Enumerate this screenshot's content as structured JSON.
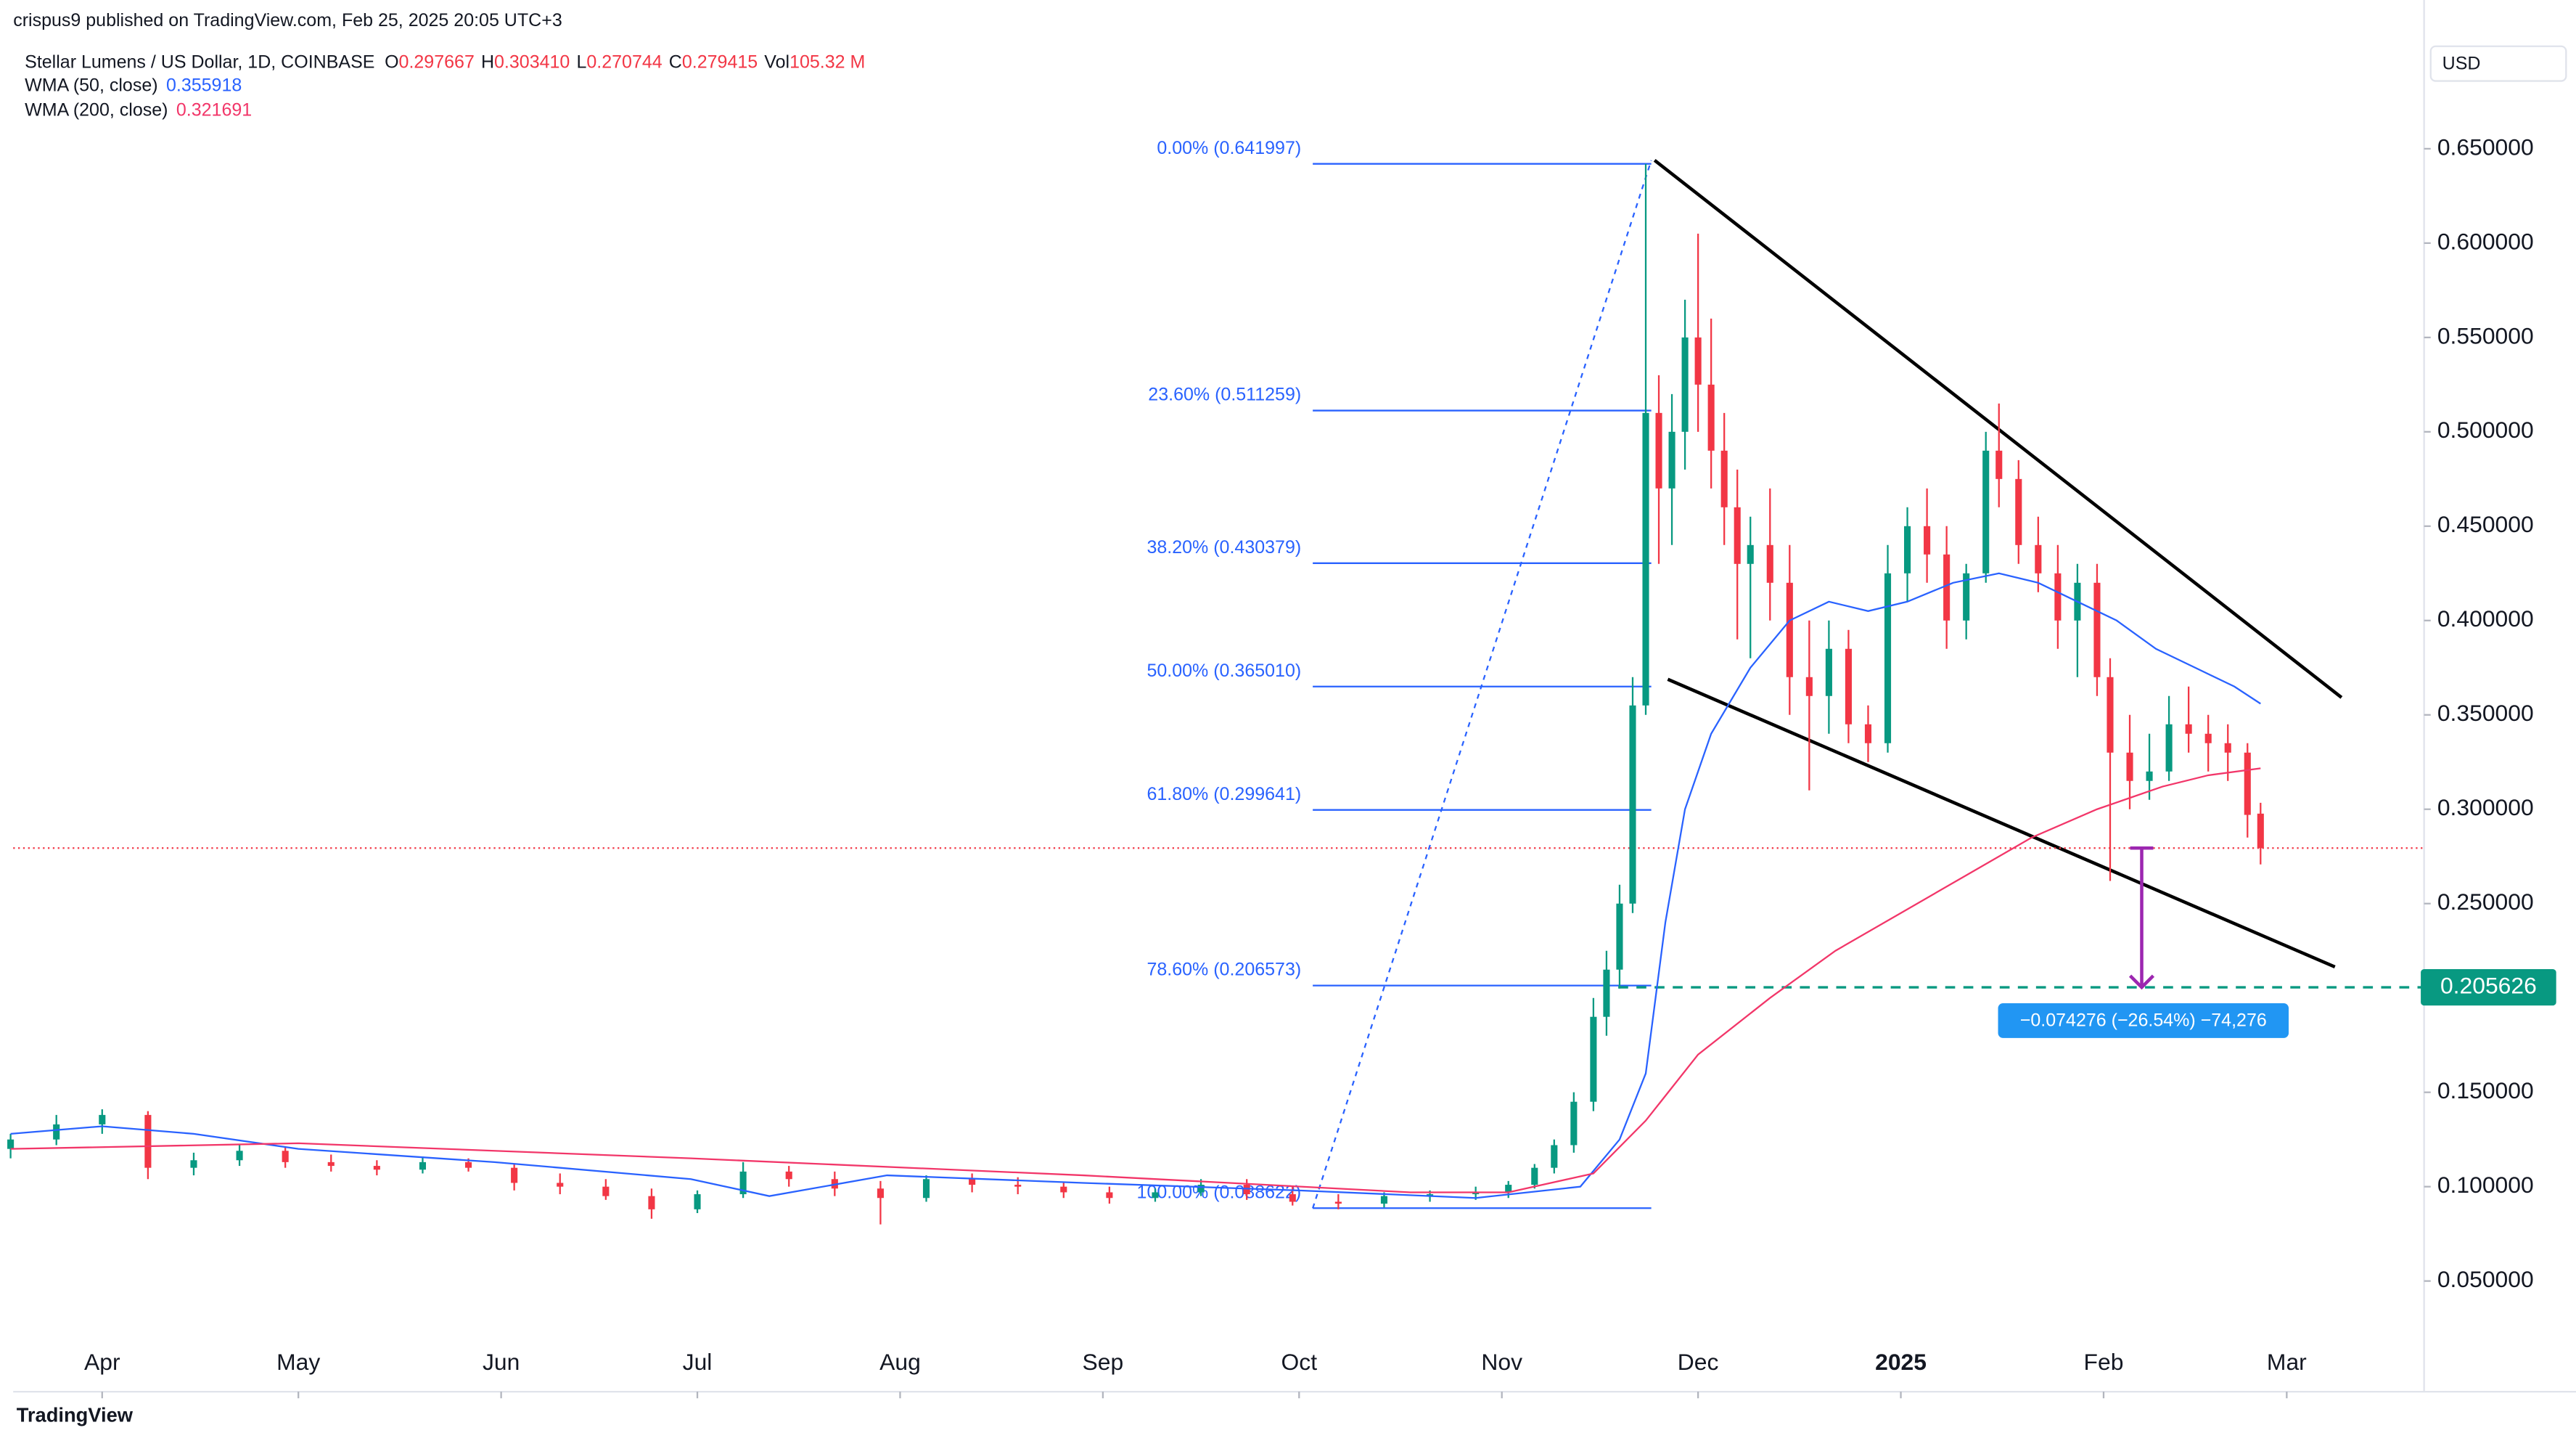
{
  "header": {
    "published": "crispus9 published on TradingView.com, Feb 25, 2025 20:05 UTC+3",
    "symbol": "Stellar Lumens / US Dollar, 1D, COINBASE",
    "ohlc": [
      {
        "key": "O",
        "value": "0.297667"
      },
      {
        "key": "H",
        "value": "0.303410"
      },
      {
        "key": "L",
        "value": "0.270744"
      },
      {
        "key": "C",
        "value": "0.279415"
      },
      {
        "key": "Vol",
        "value": "105.32 M"
      }
    ]
  },
  "currency": "USD",
  "footer": "TradingView",
  "chart_data": {
    "type": "candlestick",
    "up_color": "#089981",
    "down_color": "#f23645",
    "x": [
      -14,
      -7,
      0,
      7,
      14,
      21,
      28,
      35,
      42,
      49,
      56,
      63,
      70,
      77,
      84,
      91,
      98,
      105,
      112,
      119,
      126,
      133,
      140,
      147,
      154,
      161,
      168,
      175,
      182,
      189,
      196,
      203,
      210,
      215,
      219,
      222,
      225,
      228,
      230,
      232,
      234,
      236,
      238,
      240,
      242,
      244,
      246,
      248,
      250,
      252,
      255,
      258,
      261,
      264,
      267,
      270,
      273,
      276,
      279,
      282,
      285,
      288,
      290,
      293,
      296,
      299,
      302,
      305,
      307,
      310,
      313,
      316,
      319,
      322,
      325,
      328,
      330
    ],
    "open": [
      0.12,
      0.125,
      0.133,
      0.138,
      0.11,
      0.114,
      0.119,
      0.113,
      0.111,
      0.109,
      0.113,
      0.11,
      0.102,
      0.1,
      0.095,
      0.088,
      0.096,
      0.108,
      0.104,
      0.099,
      0.094,
      0.104,
      0.101,
      0.1,
      0.097,
      0.094,
      0.097,
      0.101,
      0.096,
      0.092,
      0.091,
      0.095,
      0.096,
      0.097,
      0.101,
      0.11,
      0.122,
      0.145,
      0.19,
      0.215,
      0.25,
      0.355,
      0.51,
      0.47,
      0.5,
      0.55,
      0.525,
      0.49,
      0.46,
      0.43,
      0.44,
      0.42,
      0.37,
      0.36,
      0.385,
      0.345,
      0.335,
      0.425,
      0.45,
      0.435,
      0.4,
      0.425,
      0.49,
      0.475,
      0.44,
      0.425,
      0.4,
      0.42,
      0.37,
      0.33,
      0.315,
      0.32,
      0.345,
      0.34,
      0.335,
      0.33,
      0.297667
    ],
    "high": [
      0.128,
      0.138,
      0.141,
      0.14,
      0.118,
      0.122,
      0.121,
      0.117,
      0.114,
      0.116,
      0.115,
      0.112,
      0.107,
      0.104,
      0.099,
      0.098,
      0.113,
      0.111,
      0.108,
      0.103,
      0.106,
      0.107,
      0.105,
      0.102,
      0.1,
      0.099,
      0.104,
      0.104,
      0.1,
      0.096,
      0.097,
      0.098,
      0.1,
      0.103,
      0.112,
      0.125,
      0.15,
      0.2,
      0.225,
      0.26,
      0.37,
      0.641997,
      0.53,
      0.52,
      0.57,
      0.605,
      0.56,
      0.51,
      0.48,
      0.455,
      0.47,
      0.44,
      0.4,
      0.4,
      0.395,
      0.355,
      0.44,
      0.46,
      0.47,
      0.45,
      0.43,
      0.5,
      0.515,
      0.485,
      0.455,
      0.44,
      0.43,
      0.43,
      0.38,
      0.35,
      0.34,
      0.36,
      0.365,
      0.35,
      0.345,
      0.335,
      0.30341
    ],
    "low": [
      0.115,
      0.122,
      0.128,
      0.104,
      0.106,
      0.111,
      0.11,
      0.108,
      0.106,
      0.107,
      0.108,
      0.098,
      0.096,
      0.093,
      0.083,
      0.086,
      0.094,
      0.1,
      0.095,
      0.08,
      0.092,
      0.097,
      0.096,
      0.094,
      0.091,
      0.092,
      0.095,
      0.093,
      0.09,
      0.088,
      0.089,
      0.092,
      0.093,
      0.094,
      0.099,
      0.107,
      0.118,
      0.14,
      0.18,
      0.205,
      0.245,
      0.35,
      0.43,
      0.44,
      0.48,
      0.5,
      0.47,
      0.44,
      0.39,
      0.38,
      0.4,
      0.35,
      0.31,
      0.34,
      0.335,
      0.325,
      0.33,
      0.41,
      0.42,
      0.385,
      0.39,
      0.42,
      0.46,
      0.43,
      0.415,
      0.385,
      0.37,
      0.36,
      0.262,
      0.3,
      0.305,
      0.315,
      0.33,
      0.32,
      0.315,
      0.285,
      0.270744
    ],
    "close": [
      0.125,
      0.133,
      0.138,
      0.11,
      0.114,
      0.119,
      0.113,
      0.111,
      0.109,
      0.113,
      0.11,
      0.102,
      0.1,
      0.095,
      0.088,
      0.096,
      0.108,
      0.104,
      0.099,
      0.094,
      0.104,
      0.101,
      0.1,
      0.097,
      0.094,
      0.097,
      0.101,
      0.096,
      0.092,
      0.091,
      0.095,
      0.096,
      0.097,
      0.101,
      0.11,
      0.122,
      0.145,
      0.19,
      0.215,
      0.25,
      0.355,
      0.51,
      0.47,
      0.5,
      0.55,
      0.525,
      0.49,
      0.46,
      0.43,
      0.44,
      0.42,
      0.37,
      0.36,
      0.385,
      0.345,
      0.335,
      0.425,
      0.45,
      0.435,
      0.4,
      0.425,
      0.49,
      0.475,
      0.44,
      0.425,
      0.4,
      0.42,
      0.37,
      0.33,
      0.315,
      0.32,
      0.345,
      0.34,
      0.335,
      0.33,
      0.297,
      0.279415
    ],
    "series": [
      {
        "name": "WMA (50, close)",
        "last": "0.355918",
        "color": "#2962ff",
        "x": [
          -14,
          0,
          14,
          30,
          60,
          90,
          102,
          120,
          150,
          183,
          210,
          226,
          232,
          236,
          239,
          242,
          246,
          252,
          258,
          264,
          270,
          276,
          283,
          290,
          296,
          302,
          308,
          314,
          320,
          326,
          330
        ],
        "values": [
          0.128,
          0.132,
          0.128,
          0.12,
          0.113,
          0.104,
          0.095,
          0.106,
          0.102,
          0.098,
          0.094,
          0.1,
          0.125,
          0.16,
          0.24,
          0.3,
          0.34,
          0.375,
          0.4,
          0.41,
          0.405,
          0.41,
          0.42,
          0.425,
          0.42,
          0.41,
          0.4,
          0.385,
          0.375,
          0.365,
          0.355918
        ]
      },
      {
        "name": "WMA (200, close)",
        "last": "0.321691",
        "color": "#f23669",
        "x": [
          -14,
          30,
          90,
          150,
          200,
          215,
          228,
          236,
          244,
          255,
          265,
          275,
          285,
          295,
          305,
          315,
          322,
          330
        ],
        "values": [
          0.12,
          0.123,
          0.115,
          0.106,
          0.097,
          0.097,
          0.107,
          0.135,
          0.17,
          0.2,
          0.225,
          0.245,
          0.265,
          0.285,
          0.3,
          0.312,
          0.318,
          0.321691
        ]
      }
    ],
    "xlim": [
      -13.6,
      355
    ],
    "xticks": [
      {
        "value": 0,
        "label": "Apr"
      },
      {
        "value": 30,
        "label": "May"
      },
      {
        "value": 61,
        "label": "Jun"
      },
      {
        "value": 91,
        "label": "Jul"
      },
      {
        "value": 122,
        "label": "Aug"
      },
      {
        "value": 153,
        "label": "Sep"
      },
      {
        "value": 183,
        "label": "Oct"
      },
      {
        "value": 214,
        "label": "Nov"
      },
      {
        "value": 244,
        "label": "Dec"
      },
      {
        "value": 275,
        "label": "2025",
        "bold": true
      },
      {
        "value": 306,
        "label": "Feb"
      },
      {
        "value": 334,
        "label": "Mar"
      }
    ],
    "ylim": [
      0.02,
      0.7
    ],
    "yticks": [
      {
        "value": 0.05,
        "label": "0.050000"
      },
      {
        "value": 0.1,
        "label": "0.100000"
      },
      {
        "value": 0.15,
        "label": "0.150000"
      },
      {
        "value": 0.2,
        "label": "0.200000"
      },
      {
        "value": 0.25,
        "label": "0.250000"
      },
      {
        "value": 0.3,
        "label": "0.300000"
      },
      {
        "value": 0.35,
        "label": "0.350000"
      },
      {
        "value": 0.4,
        "label": "0.400000"
      },
      {
        "value": 0.45,
        "label": "0.450000"
      },
      {
        "value": 0.5,
        "label": "0.500000"
      },
      {
        "value": 0.55,
        "label": "0.550000"
      },
      {
        "value": 0.6,
        "label": "0.600000"
      },
      {
        "value": 0.65,
        "label": "0.650000"
      }
    ],
    "fib_levels": [
      {
        "value": 0.641997,
        "label": "0.00% (0.641997)"
      },
      {
        "value": 0.511259,
        "label": "23.60% (0.511259)"
      },
      {
        "value": 0.430379,
        "label": "38.20% (0.430379)"
      },
      {
        "value": 0.36501,
        "label": "50.00% (0.365010)"
      },
      {
        "value": 0.299641,
        "label": "61.80% (0.299641)"
      },
      {
        "value": 0.206573,
        "label": "78.60% (0.206573)"
      },
      {
        "value": 0.088622,
        "label": "100.00% (0.088622)"
      }
    ],
    "target": {
      "value": 0.205626,
      "label": "0.205626"
    },
    "measure": "−0.074276 (−26.54%) −74,276"
  }
}
